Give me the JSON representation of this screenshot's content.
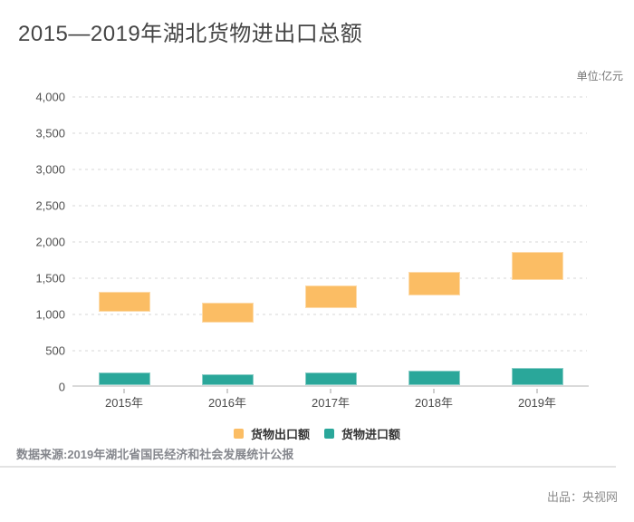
{
  "header": {
    "title": "2015—2019年湖北货物进出口总额",
    "unit_label": "单位:亿元"
  },
  "chart_data": {
    "type": "bar",
    "title": "2015—2019年湖北货物进出口总额",
    "unit": "亿元",
    "categories": [
      "2015年",
      "2016年",
      "2017年",
      "2018年",
      "2019年"
    ],
    "series": [
      {
        "name": "货物出口额",
        "style": "floating-range-bar",
        "color": "#fbbd64",
        "ranges": [
          [
            1040,
            1310
          ],
          [
            890,
            1160
          ],
          [
            1085,
            1400
          ],
          [
            1260,
            1585
          ],
          [
            1480,
            1860
          ]
        ]
      },
      {
        "name": "货物进口额",
        "style": "bar",
        "color": "#2aa79a",
        "values": [
          175,
          145,
          170,
          200,
          235
        ]
      }
    ],
    "ylim": [
      0,
      4000
    ],
    "ytick_interval": 500,
    "ytick_labels": [
      "0",
      "500",
      "1,000",
      "1,500",
      "2,000",
      "2,500",
      "3,000",
      "3,500",
      "4,000"
    ],
    "grid": "horizontal-dashed",
    "legend_position": "bottom-center"
  },
  "legend": {
    "items": [
      {
        "label": "货物出口额",
        "color": "#fbbd64"
      },
      {
        "label": "货物进口额",
        "color": "#2aa79a"
      }
    ]
  },
  "footer": {
    "source": "数据来源:2019年湖北省国民经济和社会发展统计公报",
    "producer": "出品：央视网"
  }
}
